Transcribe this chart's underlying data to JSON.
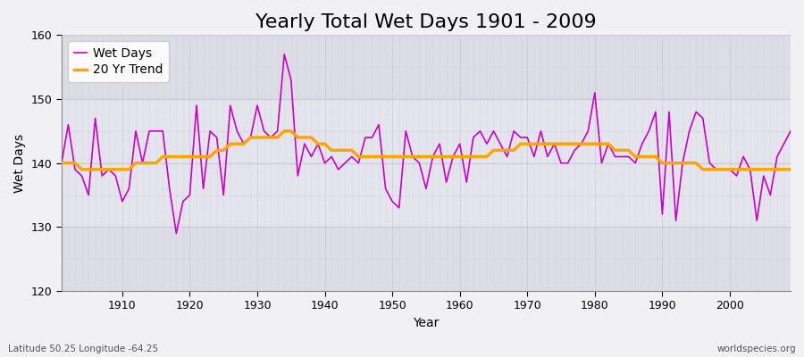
{
  "title": "Yearly Total Wet Days 1901 - 2009",
  "xlabel": "Year",
  "ylabel": "Wet Days",
  "subtitle_left": "Latitude 50.25 Longitude -64.25",
  "subtitle_right": "worldspecies.org",
  "years": [
    1901,
    1902,
    1903,
    1904,
    1905,
    1906,
    1907,
    1908,
    1909,
    1910,
    1911,
    1912,
    1913,
    1914,
    1915,
    1916,
    1917,
    1918,
    1919,
    1920,
    1921,
    1922,
    1923,
    1924,
    1925,
    1926,
    1927,
    1928,
    1929,
    1930,
    1931,
    1932,
    1933,
    1934,
    1935,
    1936,
    1937,
    1938,
    1939,
    1940,
    1941,
    1942,
    1943,
    1944,
    1945,
    1946,
    1947,
    1948,
    1949,
    1950,
    1951,
    1952,
    1953,
    1954,
    1955,
    1956,
    1957,
    1958,
    1959,
    1960,
    1961,
    1962,
    1963,
    1964,
    1965,
    1966,
    1967,
    1968,
    1969,
    1970,
    1971,
    1972,
    1973,
    1974,
    1975,
    1976,
    1977,
    1978,
    1979,
    1980,
    1981,
    1982,
    1983,
    1984,
    1985,
    1986,
    1987,
    1988,
    1989,
    1990,
    1991,
    1992,
    1993,
    1994,
    1995,
    1996,
    1997,
    1998,
    1999,
    2000,
    2001,
    2002,
    2003,
    2004,
    2005,
    2006,
    2007,
    2008,
    2009
  ],
  "wet_days": [
    140,
    146,
    139,
    138,
    135,
    147,
    138,
    139,
    138,
    134,
    136,
    145,
    140,
    145,
    145,
    145,
    136,
    129,
    134,
    135,
    149,
    136,
    145,
    144,
    135,
    149,
    145,
    143,
    144,
    149,
    145,
    144,
    145,
    157,
    153,
    138,
    143,
    141,
    143,
    140,
    141,
    139,
    140,
    141,
    140,
    144,
    144,
    146,
    136,
    134,
    133,
    145,
    141,
    140,
    136,
    141,
    143,
    137,
    141,
    143,
    137,
    144,
    145,
    143,
    145,
    143,
    141,
    145,
    144,
    144,
    141,
    145,
    141,
    143,
    140,
    140,
    142,
    143,
    145,
    151,
    140,
    143,
    141,
    141,
    141,
    140,
    143,
    145,
    148,
    132,
    148,
    131,
    140,
    145,
    148,
    147,
    140,
    139,
    139,
    139,
    138,
    141,
    139,
    131,
    138,
    135,
    141,
    143,
    145
  ],
  "trend_years": [
    1901,
    1902,
    1903,
    1904,
    1905,
    1906,
    1907,
    1908,
    1909,
    1910,
    1911,
    1912,
    1913,
    1914,
    1915,
    1916,
    1917,
    1918,
    1919,
    1920,
    1921,
    1922,
    1923,
    1924,
    1925,
    1926,
    1927,
    1928,
    1929,
    1930,
    1931,
    1932,
    1933,
    1934,
    1935,
    1936,
    1937,
    1938,
    1939,
    1940,
    1941,
    1942,
    1943,
    1944,
    1945,
    1946,
    1947,
    1948,
    1949,
    1950,
    1951,
    1952,
    1953,
    1954,
    1955,
    1956,
    1957,
    1958,
    1959,
    1960,
    1961,
    1962,
    1963,
    1964,
    1965,
    1966,
    1967,
    1968,
    1969,
    1970,
    1971,
    1972,
    1973,
    1974,
    1975,
    1976,
    1977,
    1978,
    1979,
    1980,
    1981,
    1982,
    1983,
    1984,
    1985,
    1986,
    1987,
    1988,
    1989,
    1990,
    1991,
    1992,
    1993,
    1994,
    1995,
    1996,
    1997,
    1998,
    1999,
    2000,
    2001,
    2002,
    2003,
    2004,
    2005,
    2006,
    2007,
    2008,
    2009
  ],
  "trend_values": [
    140,
    140,
    140,
    139,
    139,
    139,
    139,
    139,
    139,
    139,
    139,
    140,
    140,
    140,
    140,
    141,
    141,
    141,
    141,
    141,
    141,
    141,
    141,
    142,
    142,
    143,
    143,
    143,
    144,
    144,
    144,
    144,
    144,
    145,
    145,
    144,
    144,
    144,
    143,
    143,
    142,
    142,
    142,
    142,
    141,
    141,
    141,
    141,
    141,
    141,
    141,
    141,
    141,
    141,
    141,
    141,
    141,
    141,
    141,
    141,
    141,
    141,
    141,
    141,
    142,
    142,
    142,
    142,
    143,
    143,
    143,
    143,
    143,
    143,
    143,
    143,
    143,
    143,
    143,
    143,
    143,
    143,
    142,
    142,
    142,
    141,
    141,
    141,
    141,
    140,
    140,
    140,
    140,
    140,
    140,
    139,
    139,
    139,
    139,
    139,
    139,
    139,
    139,
    139,
    139,
    139,
    139,
    139,
    139
  ],
  "wet_days_color": "#cc00cc",
  "trend_color": "#ffa500",
  "bg_color_light": "#f0f0f5",
  "bg_color_mid": "#e0e0e8",
  "grid_color": "#ccccdd",
  "ylim": [
    120,
    160
  ],
  "yticks": [
    120,
    130,
    140,
    150,
    160
  ],
  "xlim_start": 1901,
  "xlim_end": 2009,
  "title_fontsize": 16,
  "label_fontsize": 10,
  "tick_fontsize": 9
}
